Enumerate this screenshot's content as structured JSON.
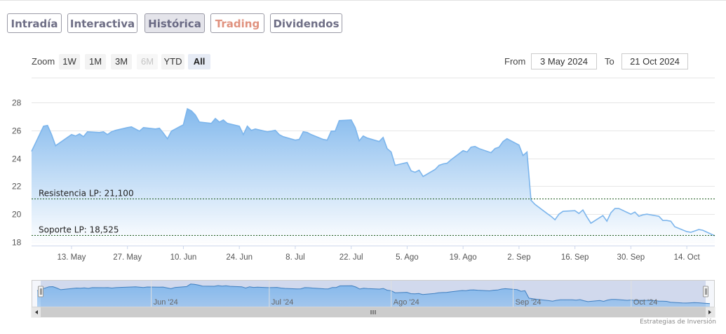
{
  "tabs": [
    {
      "label": "Intradía"
    },
    {
      "label": "Interactiva"
    },
    {
      "label": "Histórica",
      "active": true
    },
    {
      "label": "Trading"
    },
    {
      "label": "Dividendos"
    }
  ],
  "range_selector": {
    "zoom_label": "Zoom",
    "buttons": [
      {
        "label": "1W",
        "state": "normal"
      },
      {
        "label": "1M",
        "state": "normal"
      },
      {
        "label": "3M",
        "state": "normal"
      },
      {
        "label": "6M",
        "state": "disabled"
      },
      {
        "label": "YTD",
        "state": "normal"
      },
      {
        "label": "All",
        "state": "selected"
      }
    ],
    "from_label": "From",
    "from_value": "3 May 2024",
    "to_label": "To",
    "to_value": "21 Oct 2024"
  },
  "chart_data": {
    "type": "area",
    "x_start": "2024-05-03",
    "x_end": "2024-10-21",
    "ylim": [
      17.7,
      28.8
    ],
    "y_ticks": [
      "18",
      "20",
      "22",
      "24",
      "26",
      "28"
    ],
    "x_tick_labels": [
      {
        "date": "2024-05-13",
        "label": "13. May"
      },
      {
        "date": "2024-05-27",
        "label": "27. May"
      },
      {
        "date": "2024-06-10",
        "label": "10. Jun"
      },
      {
        "date": "2024-06-24",
        "label": "24. Jun"
      },
      {
        "date": "2024-07-08",
        "label": "8. Jul"
      },
      {
        "date": "2024-07-22",
        "label": "22. Jul"
      },
      {
        "date": "2024-08-05",
        "label": "5. Ago"
      },
      {
        "date": "2024-08-19",
        "label": "19. Ago"
      },
      {
        "date": "2024-09-02",
        "label": "2. Sep"
      },
      {
        "date": "2024-09-16",
        "label": "16. Sep"
      },
      {
        "date": "2024-09-30",
        "label": "30. Sep"
      },
      {
        "date": "2024-10-14",
        "label": "14. Oct"
      }
    ],
    "grid": true,
    "colors": {
      "line": "#7cb5ec",
      "fill_top": "#7cb5ec",
      "fill_bottom": "#ffffff",
      "grid": "#e6e6e6",
      "level_line": "#1e5b1e"
    },
    "series": [
      {
        "values": [
          [
            "2024-05-03",
            24.5
          ],
          [
            "2024-05-06",
            26.3
          ],
          [
            "2024-05-07",
            26.35
          ],
          [
            "2024-05-08",
            25.7
          ],
          [
            "2024-05-09",
            24.9
          ],
          [
            "2024-05-10",
            25.1
          ],
          [
            "2024-05-13",
            25.7
          ],
          [
            "2024-05-14",
            25.6
          ],
          [
            "2024-05-15",
            25.75
          ],
          [
            "2024-05-16",
            25.55
          ],
          [
            "2024-05-17",
            25.9
          ],
          [
            "2024-05-20",
            25.85
          ],
          [
            "2024-05-21",
            25.9
          ],
          [
            "2024-05-22",
            25.7
          ],
          [
            "2024-05-23",
            25.9
          ],
          [
            "2024-05-24",
            26.0
          ],
          [
            "2024-05-27",
            26.2
          ],
          [
            "2024-05-28",
            26.25
          ],
          [
            "2024-05-29",
            26.1
          ],
          [
            "2024-05-30",
            25.95
          ],
          [
            "2024-05-31",
            26.2
          ],
          [
            "2024-06-03",
            26.1
          ],
          [
            "2024-06-04",
            26.15
          ],
          [
            "2024-06-05",
            25.8
          ],
          [
            "2024-06-06",
            25.4
          ],
          [
            "2024-06-07",
            25.95
          ],
          [
            "2024-06-10",
            26.4
          ],
          [
            "2024-06-11",
            27.55
          ],
          [
            "2024-06-12",
            27.4
          ],
          [
            "2024-06-13",
            27.1
          ],
          [
            "2024-06-14",
            26.6
          ],
          [
            "2024-06-17",
            26.5
          ],
          [
            "2024-06-18",
            26.85
          ],
          [
            "2024-06-19",
            26.6
          ],
          [
            "2024-06-20",
            26.75
          ],
          [
            "2024-06-21",
            26.5
          ],
          [
            "2024-06-24",
            26.3
          ],
          [
            "2024-06-25",
            25.7
          ],
          [
            "2024-06-26",
            26.3
          ],
          [
            "2024-06-27",
            26.0
          ],
          [
            "2024-06-28",
            26.1
          ],
          [
            "2024-07-01",
            25.9
          ],
          [
            "2024-07-02",
            25.95
          ],
          [
            "2024-07-03",
            26.0
          ],
          [
            "2024-07-04",
            25.7
          ],
          [
            "2024-07-05",
            25.55
          ],
          [
            "2024-07-08",
            25.3
          ],
          [
            "2024-07-09",
            25.35
          ],
          [
            "2024-07-10",
            25.9
          ],
          [
            "2024-07-11",
            25.85
          ],
          [
            "2024-07-12",
            25.7
          ],
          [
            "2024-07-15",
            25.35
          ],
          [
            "2024-07-16",
            25.3
          ],
          [
            "2024-07-17",
            25.95
          ],
          [
            "2024-07-18",
            25.95
          ],
          [
            "2024-07-19",
            26.7
          ],
          [
            "2024-07-22",
            26.75
          ],
          [
            "2024-07-23",
            26.2
          ],
          [
            "2024-07-24",
            25.25
          ],
          [
            "2024-07-25",
            25.6
          ],
          [
            "2024-07-26",
            25.45
          ],
          [
            "2024-07-29",
            25.2
          ],
          [
            "2024-07-30",
            25.5
          ],
          [
            "2024-07-31",
            24.7
          ],
          [
            "2024-08-01",
            24.45
          ],
          [
            "2024-08-02",
            23.5
          ],
          [
            "2024-08-05",
            23.7
          ],
          [
            "2024-08-06",
            23.1
          ],
          [
            "2024-08-07",
            23.0
          ],
          [
            "2024-08-08",
            23.15
          ],
          [
            "2024-08-09",
            22.7
          ],
          [
            "2024-08-12",
            23.2
          ],
          [
            "2024-08-13",
            23.5
          ],
          [
            "2024-08-14",
            23.6
          ],
          [
            "2024-08-15",
            23.65
          ],
          [
            "2024-08-16",
            23.9
          ],
          [
            "2024-08-19",
            24.55
          ],
          [
            "2024-08-20",
            24.45
          ],
          [
            "2024-08-21",
            24.8
          ],
          [
            "2024-08-22",
            24.85
          ],
          [
            "2024-08-23",
            24.7
          ],
          [
            "2024-08-26",
            24.4
          ],
          [
            "2024-08-27",
            24.7
          ],
          [
            "2024-08-28",
            24.8
          ],
          [
            "2024-08-29",
            25.2
          ],
          [
            "2024-08-30",
            25.4
          ],
          [
            "2024-09-02",
            24.95
          ],
          [
            "2024-09-03",
            24.2
          ],
          [
            "2024-09-04",
            24.45
          ],
          [
            "2024-09-05",
            21.0
          ],
          [
            "2024-09-06",
            20.7
          ],
          [
            "2024-09-09",
            20.05
          ],
          [
            "2024-09-10",
            19.85
          ],
          [
            "2024-09-11",
            19.6
          ],
          [
            "2024-09-12",
            20.0
          ],
          [
            "2024-09-13",
            20.2
          ],
          [
            "2024-09-16",
            20.25
          ],
          [
            "2024-09-17",
            20.05
          ],
          [
            "2024-09-18",
            20.3
          ],
          [
            "2024-09-19",
            19.8
          ],
          [
            "2024-09-20",
            19.35
          ],
          [
            "2024-09-23",
            19.9
          ],
          [
            "2024-09-24",
            19.5
          ],
          [
            "2024-09-25",
            20.1
          ],
          [
            "2024-09-26",
            20.4
          ],
          [
            "2024-09-27",
            20.4
          ],
          [
            "2024-09-30",
            20.0
          ],
          [
            "2024-10-01",
            20.15
          ],
          [
            "2024-10-02",
            19.85
          ],
          [
            "2024-10-03",
            19.95
          ],
          [
            "2024-10-04",
            20.0
          ],
          [
            "2024-10-07",
            19.85
          ],
          [
            "2024-10-08",
            19.55
          ],
          [
            "2024-10-09",
            19.55
          ],
          [
            "2024-10-10",
            19.5
          ],
          [
            "2024-10-11",
            19.1
          ],
          [
            "2024-10-14",
            18.75
          ],
          [
            "2024-10-15",
            18.7
          ],
          [
            "2024-10-16",
            18.8
          ],
          [
            "2024-10-17",
            18.9
          ],
          [
            "2024-10-18",
            18.85
          ],
          [
            "2024-10-21",
            18.45
          ]
        ]
      }
    ],
    "levels": [
      {
        "label": "Resistencia LP: 21,100",
        "value": 21.1
      },
      {
        "label": "Soporte LP: 18,525",
        "value": 18.525
      }
    ],
    "navigator_labels": [
      {
        "date": "2024-06-01",
        "label": "Jun '24"
      },
      {
        "date": "2024-07-01",
        "label": "Jul '24"
      },
      {
        "date": "2024-08-01",
        "label": "Ago '24"
      },
      {
        "date": "2024-09-01",
        "label": "Sep '24"
      },
      {
        "date": "2024-10-01",
        "label": "Oct '24"
      }
    ]
  },
  "credit": "Estrategias de Inversión"
}
